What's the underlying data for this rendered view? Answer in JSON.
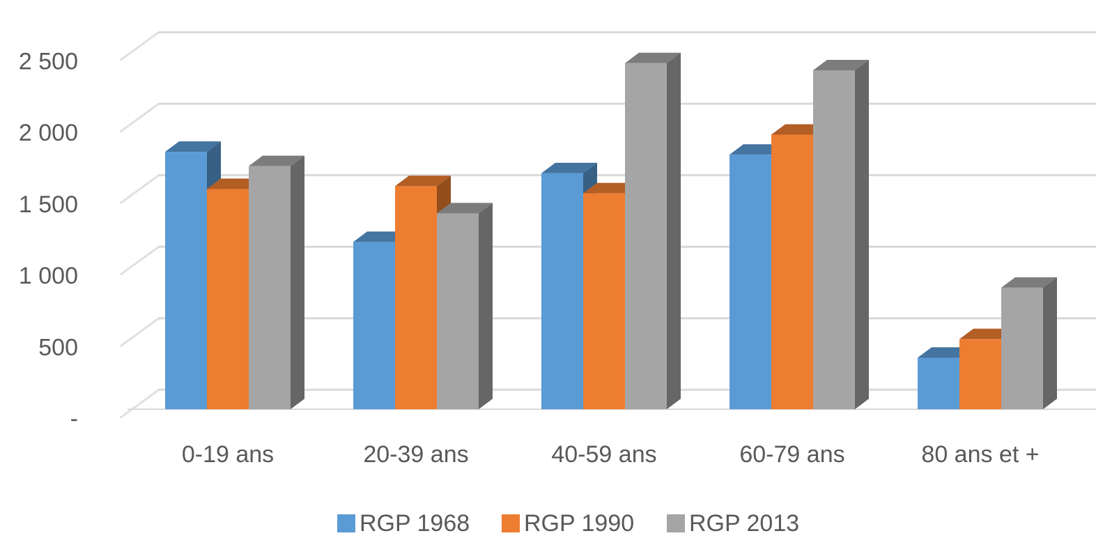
{
  "chart_data": {
    "type": "bar",
    "three_d": true,
    "categories": [
      "0-19 ans",
      "20-39 ans",
      "40-59 ans",
      "60-79 ans",
      "80 ans et +"
    ],
    "series": [
      {
        "name": "RGP 1968",
        "color": "#5B9BD5",
        "values": [
          1800,
          1170,
          1650,
          1780,
          360
        ]
      },
      {
        "name": "RGP 1990",
        "color": "#ED7D31",
        "values": [
          1540,
          1560,
          1510,
          1920,
          490
        ]
      },
      {
        "name": "RGP 2013",
        "color": "#A5A5A5",
        "values": [
          1700,
          1370,
          2420,
          2370,
          850
        ]
      }
    ],
    "yticks": [
      {
        "value": 0,
        "label": "-"
      },
      {
        "value": 500,
        "label": "500"
      },
      {
        "value": 1000,
        "label": "1 000"
      },
      {
        "value": 1500,
        "label": "1 500"
      },
      {
        "value": 2000,
        "label": "2 000"
      },
      {
        "value": 2500,
        "label": "2 500"
      }
    ],
    "ylim": [
      0,
      2500
    ],
    "grid": true,
    "legend_position": "bottom"
  }
}
